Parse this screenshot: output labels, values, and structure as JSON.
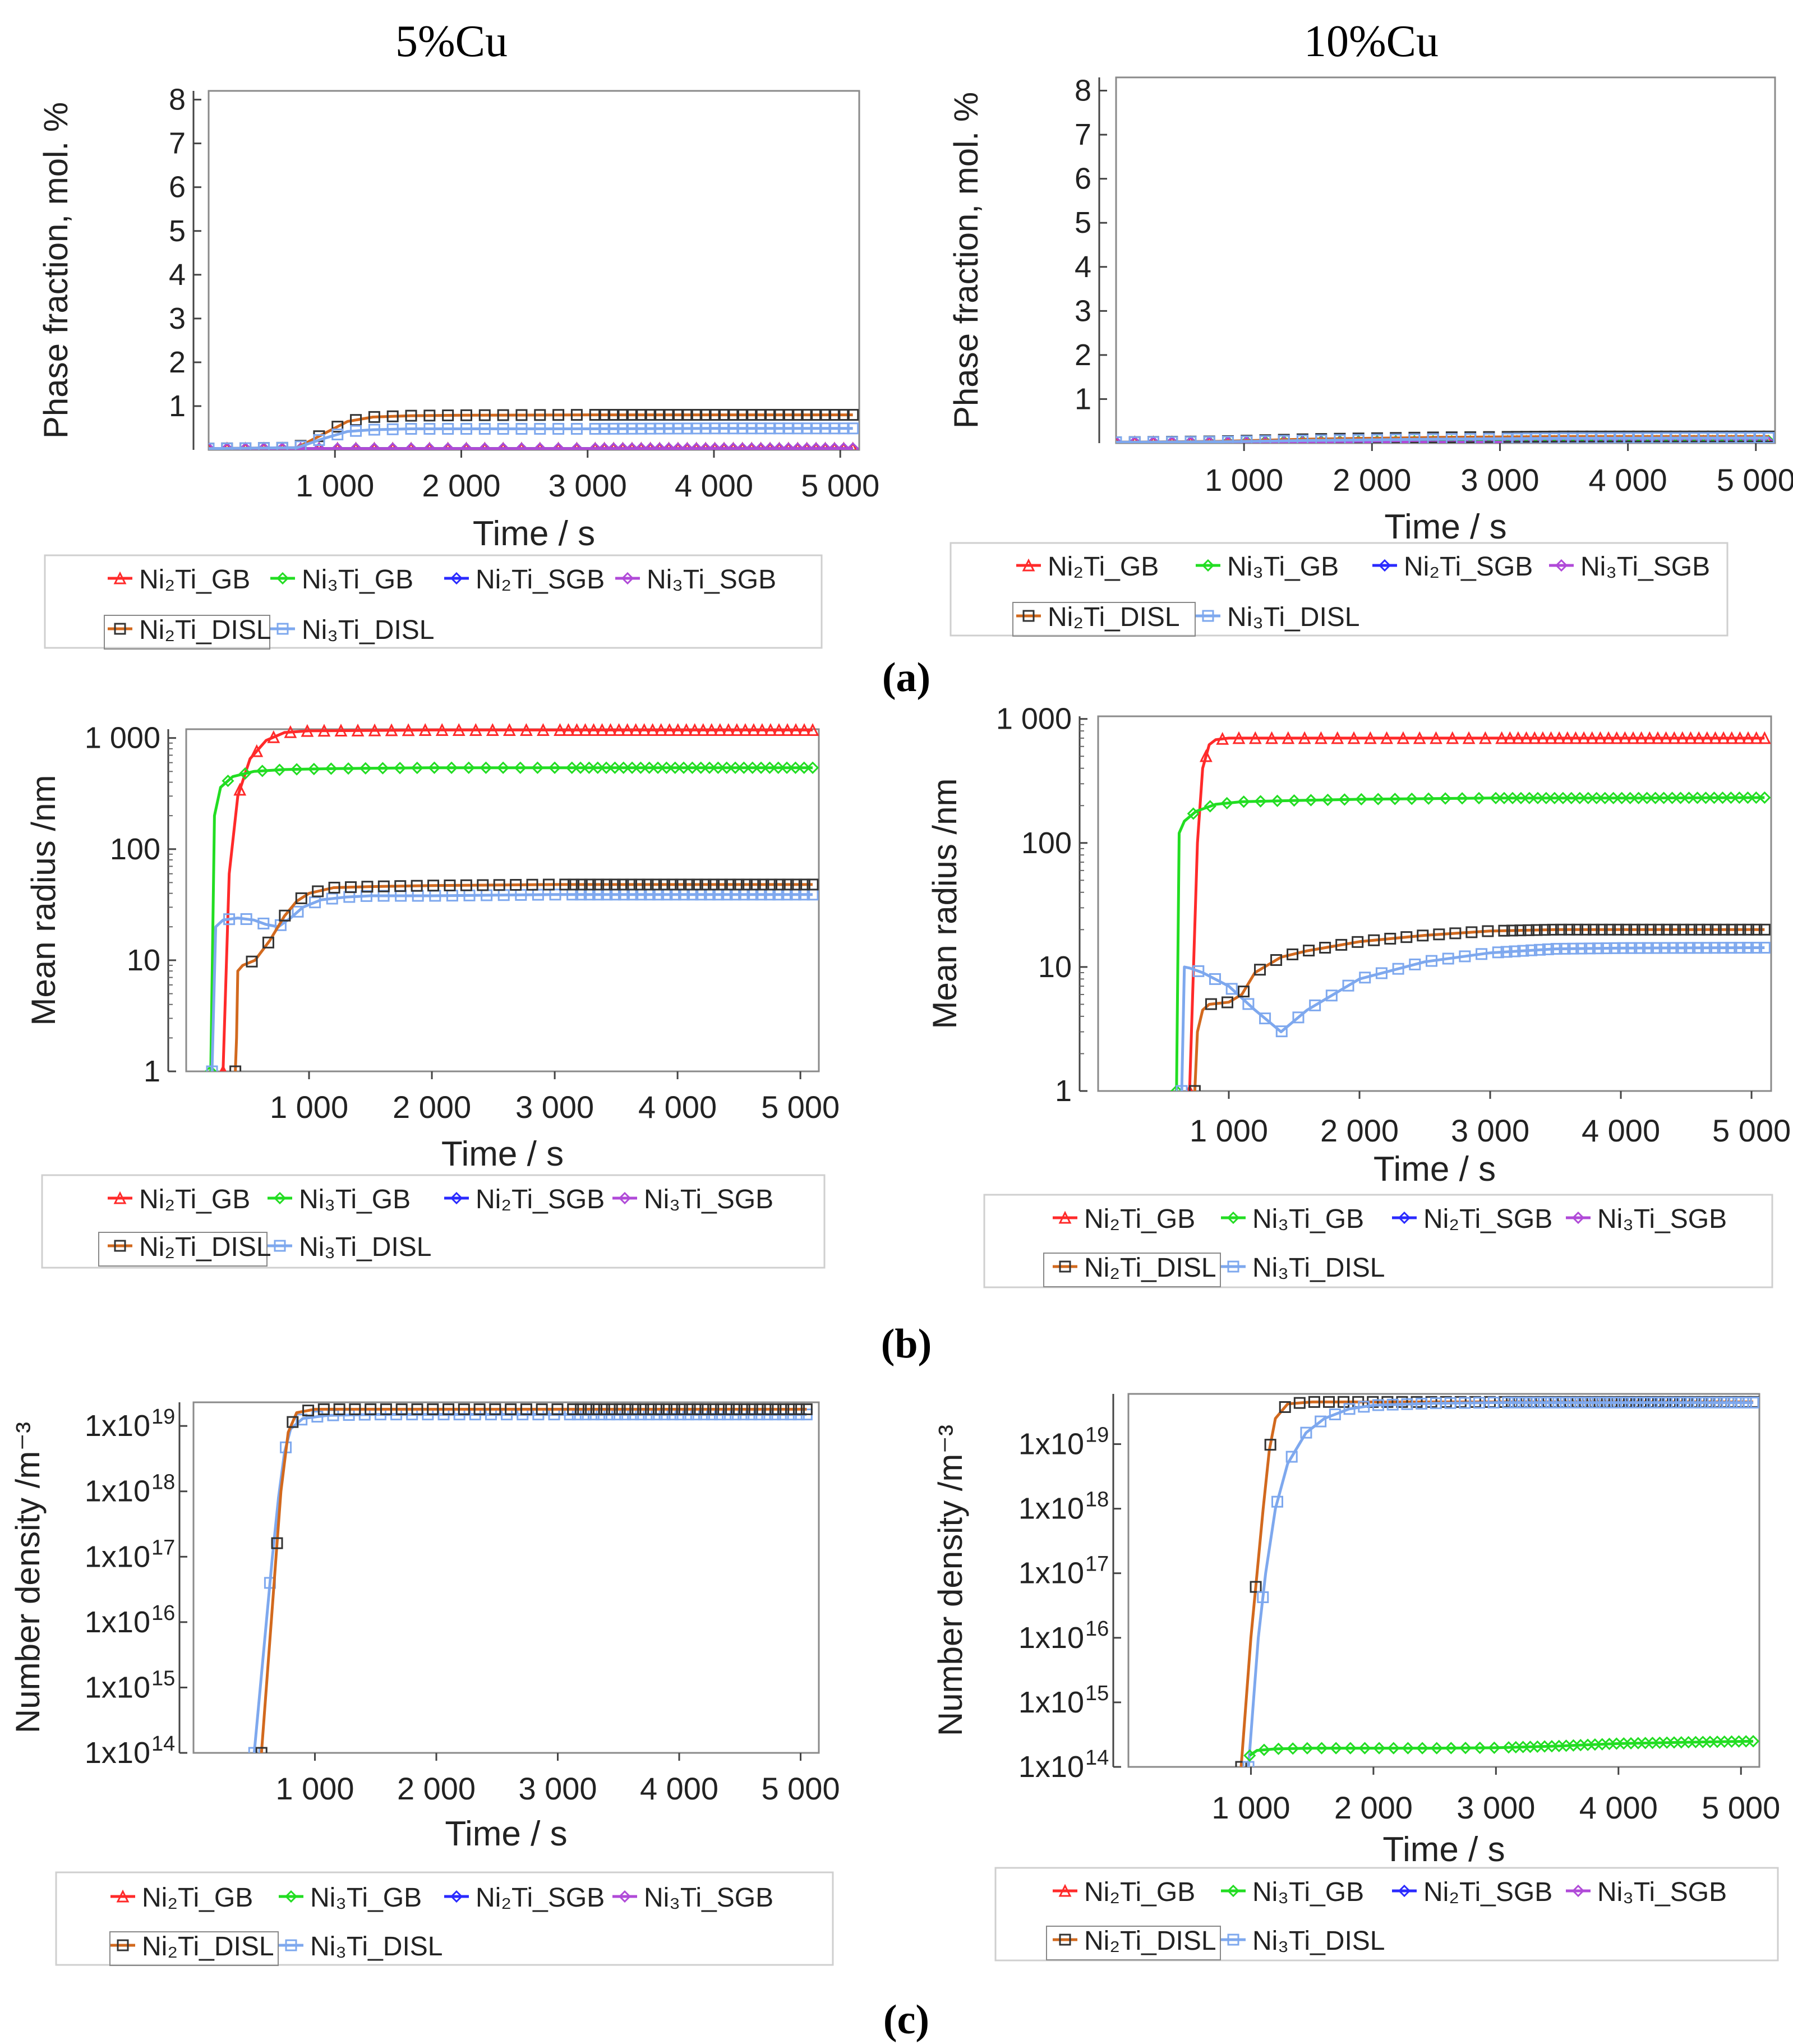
{
  "column_titles": [
    "5%Cu",
    "10%Cu"
  ],
  "row_labels": [
    "(a)",
    "(b)",
    "(c)"
  ],
  "legend": {
    "entries": [
      "Ni₂Ti_GB",
      "Ni₃Ti_GB",
      "Ni₂Ti_SGB",
      "Ni₃Ti_SGB",
      "Ni₂Ti_DISL",
      "Ni₃Ti_DISL"
    ],
    "colors": [
      "#ff2a2a",
      "#22dd22",
      "#2a2aff",
      "#b04ad8",
      "#d2691e",
      "#7ea8ee"
    ]
  },
  "chart_data": [
    {
      "id": "a-5cu",
      "type": "line",
      "title": "5%Cu",
      "xlabel": "Time / s",
      "ylabel": "Phase fraction, mol. %",
      "xlim": [
        0,
        5150
      ],
      "ylim": [
        0,
        8.2
      ],
      "yscale": "linear",
      "xticks": [
        1000,
        2000,
        3000,
        4000,
        5000
      ],
      "xticklabels": [
        "1 000",
        "2 000",
        "3 000",
        "4 000",
        "5 000"
      ],
      "yticks": [
        1,
        2,
        3,
        4,
        5,
        6,
        7,
        8
      ],
      "yticklabels": [
        "1",
        "2",
        "3",
        "4",
        "5",
        "6",
        "7",
        "8"
      ],
      "series": [
        {
          "name": "Ni₂Ti_GB",
          "x": [
            0,
            5100
          ],
          "y": [
            0.03,
            0.03
          ]
        },
        {
          "name": "Ni₃Ti_GB",
          "x": [
            0,
            5100
          ],
          "y": [
            0.03,
            0.03
          ]
        },
        {
          "name": "Ni₂Ti_SGB",
          "x": [
            0,
            5100
          ],
          "y": [
            0.03,
            0.03
          ]
        },
        {
          "name": "Ni₃Ti_SGB",
          "x": [
            0,
            5100
          ],
          "y": [
            0.03,
            0.03
          ]
        },
        {
          "name": "Ni₂Ti_DISL",
          "x": [
            0,
            700,
            900,
            1100,
            1300,
            1600,
            2000,
            3000,
            4000,
            5100
          ],
          "y": [
            0.03,
            0.05,
            0.35,
            0.65,
            0.75,
            0.78,
            0.79,
            0.8,
            0.8,
            0.8
          ]
        },
        {
          "name": "Ni₃Ti_DISL",
          "x": [
            0,
            700,
            900,
            1100,
            1300,
            1600,
            2000,
            3000,
            4000,
            5100
          ],
          "y": [
            0.03,
            0.05,
            0.25,
            0.42,
            0.46,
            0.48,
            0.48,
            0.48,
            0.49,
            0.49
          ]
        }
      ]
    },
    {
      "id": "a-10cu",
      "type": "line",
      "title": "10%Cu",
      "xlabel": "Time / s",
      "ylabel": "Phase fraction, mol. %",
      "xlim": [
        0,
        5150
      ],
      "ylim": [
        0,
        8.3
      ],
      "yscale": "linear",
      "xticks": [
        1000,
        2000,
        3000,
        4000,
        5000
      ],
      "xticklabels": [
        "1 000",
        "2 000",
        "3 000",
        "4 000",
        "5 000"
      ],
      "yticks": [
        1,
        2,
        3,
        4,
        5,
        6,
        7,
        8
      ],
      "yticklabels": [
        "1",
        "2",
        "3",
        "4",
        "5",
        "6",
        "7",
        "8"
      ],
      "series": [
        {
          "name": "Ni₂Ti_GB",
          "x": [
            0,
            5100
          ],
          "y": [
            0.02,
            0.02
          ]
        },
        {
          "name": "Ni₃Ti_GB",
          "x": [
            0,
            800,
            1200,
            5100
          ],
          "y": [
            0.02,
            0.03,
            0.04,
            0.05
          ]
        },
        {
          "name": "Ni₂Ti_SGB",
          "x": [
            0,
            5100
          ],
          "y": [
            0.02,
            0.02
          ]
        },
        {
          "name": "Ni₃Ti_SGB",
          "x": [
            0,
            5100
          ],
          "y": [
            0.02,
            0.02
          ]
        },
        {
          "name": "Ni₂Ti_DISL",
          "x": [
            0,
            800,
            1500,
            2500,
            3500,
            5100
          ],
          "y": [
            0.02,
            0.04,
            0.09,
            0.13,
            0.15,
            0.15
          ]
        },
        {
          "name": "Ni₃Ti_DISL",
          "x": [
            0,
            800,
            1500,
            2500,
            3500,
            5100
          ],
          "y": [
            0.02,
            0.03,
            0.06,
            0.09,
            0.11,
            0.12
          ]
        }
      ]
    },
    {
      "id": "b-5cu",
      "type": "line",
      "title": "",
      "xlabel": "Time / s",
      "ylabel": "Mean radius /nm",
      "xlim": [
        0,
        5150
      ],
      "ylim": [
        1,
        1200
      ],
      "yscale": "log",
      "xticks": [
        1000,
        2000,
        3000,
        4000,
        5000
      ],
      "xticklabels": [
        "1 000",
        "2 000",
        "3 000",
        "4 000",
        "5 000"
      ],
      "yticks": [
        1,
        10,
        100,
        1000
      ],
      "yticklabels": [
        "1",
        "10",
        "100",
        "1 000"
      ],
      "series": [
        {
          "name": "Ni₂Ti_GB",
          "x": [
            300,
            350,
            420,
            520,
            650,
            800,
            1000,
            2000,
            3000,
            4000,
            5100
          ],
          "y": [
            1,
            60,
            300,
            650,
            950,
            1120,
            1160,
            1180,
            1180,
            1180,
            1180
          ]
        },
        {
          "name": "Ni₃Ti_GB",
          "x": [
            200,
            230,
            280,
            380,
            550,
            800,
            1200,
            2000,
            3000,
            4000,
            5100
          ],
          "y": [
            1,
            200,
            360,
            450,
            500,
            520,
            530,
            540,
            540,
            540,
            540
          ]
        },
        {
          "name": "Ni₃Ti_DISL",
          "x": [
            210,
            240,
            300,
            420,
            550,
            650,
            750,
            850,
            950,
            1100,
            1300,
            1500,
            2000,
            3000,
            4000,
            5100
          ],
          "y": [
            1,
            20,
            23,
            24,
            23,
            21,
            20,
            24,
            30,
            35,
            37,
            38,
            38,
            39,
            39,
            39
          ]
        },
        {
          "name": "Ni₂Ti_DISL",
          "x": [
            400,
            410,
            420,
            460,
            560,
            680,
            800,
            900,
            1000,
            1200,
            1500,
            2000,
            3000,
            4000,
            5100
          ],
          "y": [
            1,
            2,
            8,
            9,
            10,
            15,
            25,
            34,
            40,
            45,
            46,
            47,
            48,
            48,
            48
          ]
        }
      ]
    },
    {
      "id": "b-10cu",
      "type": "line",
      "title": "",
      "xlabel": "Time / s",
      "ylabel": "Mean radius /nm",
      "xlim": [
        0,
        5150
      ],
      "ylim": [
        1,
        1050
      ],
      "yscale": "log",
      "xticks": [
        1000,
        2000,
        3000,
        4000,
        5000
      ],
      "xticklabels": [
        "1 000",
        "2 000",
        "3 000",
        "4 000",
        "5 000"
      ],
      "yticks": [
        1,
        10,
        100,
        1000
      ],
      "yticklabels": [
        "1",
        "10",
        "100",
        "1 000"
      ],
      "series": [
        {
          "name": "Ni₂Ti_GB",
          "x": [
            700,
            760,
            800,
            850,
            900,
            1000,
            2000,
            3000,
            4000,
            5100
          ],
          "y": [
            1,
            100,
            400,
            620,
            680,
            700,
            700,
            700,
            700,
            700
          ]
        },
        {
          "name": "Ni₃Ti_GB",
          "x": [
            600,
            620,
            660,
            750,
            900,
            1100,
            1500,
            2000,
            3000,
            4000,
            5100
          ],
          "y": [
            1,
            120,
            150,
            180,
            205,
            215,
            220,
            225,
            230,
            230,
            232
          ]
        },
        {
          "name": "Ni₃Ti_DISL",
          "x": [
            640,
            660,
            700,
            800,
            1000,
            1200,
            1400,
            1600,
            2000,
            2500,
            3000,
            3500,
            4000,
            5100
          ],
          "y": [
            1,
            10,
            9.8,
            9,
            7,
            4.5,
            3,
            4.5,
            8,
            11,
            13,
            14,
            14.2,
            14.3
          ]
        },
        {
          "name": "Ni₂Ti_DISL",
          "x": [
            740,
            760,
            800,
            850,
            1000,
            1100,
            1200,
            1400,
            1600,
            2000,
            2500,
            3000,
            3500,
            4000,
            5100
          ],
          "y": [
            1,
            3,
            4.5,
            5,
            5.2,
            6,
            9,
            12,
            13.5,
            16,
            18,
            19.5,
            20,
            20,
            20
          ]
        }
      ]
    },
    {
      "id": "c-5cu",
      "type": "line",
      "title": "",
      "xlabel": "Time / s",
      "ylabel": "Number density /m⁻³",
      "xlim": [
        0,
        5150
      ],
      "ylim": [
        100000000000000.0,
        2.3e+19
      ],
      "yscale": "log",
      "xticks": [
        1000,
        2000,
        3000,
        4000,
        5000
      ],
      "xticklabels": [
        "1 000",
        "2 000",
        "3 000",
        "4 000",
        "5 000"
      ],
      "yticks": [
        100000000000000.0,
        1000000000000000.0,
        1e+16,
        1e+17,
        1e+18,
        1e+19
      ],
      "yticklabels": [
        "1x10",
        "1x10",
        "1x10",
        "1x10",
        "1x10",
        "1x10"
      ],
      "ytickexponents": [
        "14",
        "15",
        "16",
        "17",
        "18",
        "19"
      ],
      "series": [
        {
          "name": "Ni₃Ti_DISL",
          "x": [
            500,
            550,
            600,
            650,
            700,
            750,
            800,
            900,
            1100,
            1500,
            2000,
            3000,
            4000,
            5050
          ],
          "y": [
            100000000000000.0,
            1000000000000000.0,
            1e+16,
            1e+17,
            8e+17,
            4e+18,
            9e+18,
            1.3e+19,
            1.45e+19,
            1.5e+19,
            1.5e+19,
            1.5e+19,
            1.5e+19,
            1.5e+19
          ]
        },
        {
          "name": "Ni₂Ti_DISL",
          "x": [
            560,
            600,
            640,
            680,
            720,
            780,
            850,
            1000,
            1500,
            2000,
            3000,
            4000,
            5050
          ],
          "y": [
            100000000000000.0,
            1000000000000000.0,
            1e+16,
            1e+17,
            1e+18,
            8e+18,
            1.6e+19,
            1.8e+19,
            1.8e+19,
            1.8e+19,
            1.8e+19,
            1.8e+19,
            1.8e+19
          ]
        }
      ]
    },
    {
      "id": "c-10cu",
      "type": "line",
      "title": "",
      "xlabel": "Time / s",
      "ylabel": "Number density /m⁻³",
      "xlim": [
        0,
        5150
      ],
      "ylim": [
        100000000000000.0,
        6e+19
      ],
      "yscale": "log",
      "xticks": [
        1000,
        2000,
        3000,
        4000,
        5000
      ],
      "xticklabels": [
        "1 000",
        "2 000",
        "3 000",
        "4 000",
        "5 000"
      ],
      "yticks": [
        100000000000000.0,
        1000000000000000.0,
        1e+16,
        1e+17,
        1e+18,
        1e+19
      ],
      "yticklabels": [
        "1x10",
        "1x10",
        "1x10",
        "1x10",
        "1x10",
        "1x10"
      ],
      "ytickexponents": [
        "14",
        "15",
        "16",
        "17",
        "18",
        "19"
      ],
      "series": [
        {
          "name": "Ni₂Ti_DISL",
          "x": [
            920,
            960,
            1000,
            1050,
            1100,
            1150,
            1200,
            1300,
            1500,
            2000,
            3000,
            4000,
            5100
          ],
          "y": [
            100000000000000.0,
            1000000000000000.0,
            1e+16,
            1e+17,
            1e+18,
            8e+18,
            2.5e+19,
            4.2e+19,
            4.5e+19,
            4.5e+19,
            4.5e+19,
            4.5e+19,
            4.5e+19
          ]
        },
        {
          "name": "Ni₃Ti_DISL",
          "x": [
            980,
            1020,
            1060,
            1120,
            1200,
            1300,
            1450,
            1600,
            1800,
            2000,
            2500,
            3000,
            4000,
            5100
          ],
          "y": [
            100000000000000.0,
            1000000000000000.0,
            1e+16,
            1e+17,
            1e+18,
            5e+18,
            1.5e+19,
            2.5e+19,
            3.5e+19,
            4e+19,
            4.3e+19,
            4.4e+19,
            4.4e+19,
            4.4e+19
          ]
        },
        {
          "name": "Ni₃Ti_GB",
          "x": [
            990,
            1050,
            1200,
            1500,
            2000,
            2500,
            3000,
            3500,
            4000,
            4500,
            5100
          ],
          "y": [
            150000000000000.0,
            180000000000000.0,
            190000000000000.0,
            195000000000000.0,
            195000000000000.0,
            195000000000000.0,
            198000000000000.0,
            210000000000000.0,
            230000000000000.0,
            240000000000000.0,
            250000000000000.0
          ]
        }
      ]
    }
  ]
}
